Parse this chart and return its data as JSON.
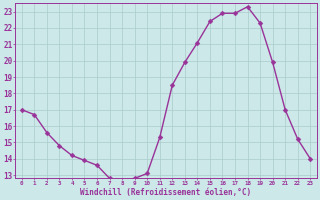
{
  "x": [
    0,
    1,
    2,
    3,
    4,
    5,
    6,
    7,
    8,
    9,
    10,
    11,
    12,
    13,
    14,
    15,
    16,
    17,
    18,
    19,
    20,
    21,
    22,
    23
  ],
  "y": [
    17.0,
    16.7,
    15.6,
    14.8,
    14.2,
    13.9,
    13.6,
    12.8,
    12.7,
    12.8,
    13.1,
    15.3,
    18.5,
    19.9,
    21.1,
    22.4,
    22.9,
    22.9,
    23.3,
    22.3,
    19.9,
    17.0,
    15.2,
    14.0
  ],
  "line_color": "#993399",
  "marker_color": "#993399",
  "bg_color": "#cce8e8",
  "grid_color": "#aacccc",
  "xlabel": "Windchill (Refroidissement éolien,°C)",
  "xlabel_color": "#993399",
  "tick_color": "#993399",
  "axis_color": "#993399",
  "xlim": [
    -0.5,
    23.5
  ],
  "ylim": [
    12.8,
    23.5
  ],
  "yticks": [
    13,
    14,
    15,
    16,
    17,
    18,
    19,
    20,
    21,
    22,
    23
  ],
  "xticks": [
    0,
    1,
    2,
    3,
    4,
    5,
    6,
    7,
    8,
    9,
    10,
    11,
    12,
    13,
    14,
    15,
    16,
    17,
    18,
    19,
    20,
    21,
    22,
    23
  ],
  "marker_size": 2.5,
  "line_width": 1.0
}
